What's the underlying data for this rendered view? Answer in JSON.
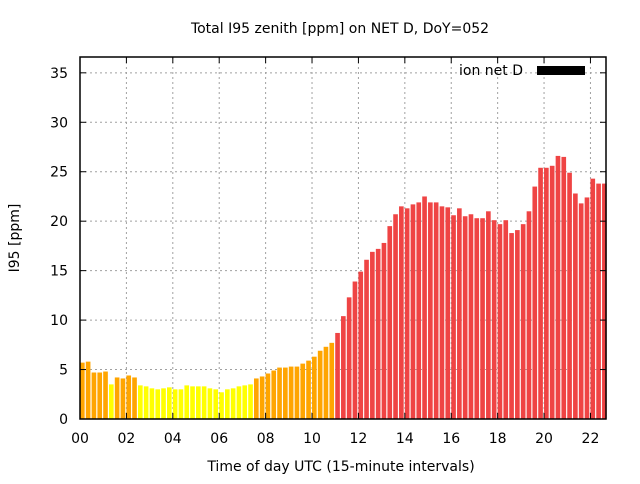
{
  "chart_data": {
    "type": "bar",
    "title": "Total I95 zenith [ppm] on NET D, DoY=052",
    "xlabel": "Time of day UTC (15-minute intervals)",
    "ylabel": "I95 [ppm]",
    "xlim": [
      0,
      22.67
    ],
    "ylim": [
      0,
      36.6
    ],
    "grid": true,
    "x_ticks": [
      0,
      2,
      4,
      6,
      8,
      10,
      12,
      14,
      16,
      18,
      20,
      22
    ],
    "x_tick_labels": [
      "00",
      "02",
      "04",
      "06",
      "08",
      "10",
      "12",
      "14",
      "16",
      "18",
      "20",
      "22"
    ],
    "y_ticks": [
      0,
      5,
      10,
      15,
      20,
      25,
      30,
      35
    ],
    "y_tick_labels": [
      "0",
      "5",
      "10",
      "15",
      "20",
      "25",
      "30",
      "35"
    ],
    "legend": {
      "label": "ion net D",
      "placement": "top-right",
      "color": "#000000"
    },
    "interval_hours": 0.25,
    "values": [
      5.7,
      5.8,
      4.7,
      4.7,
      4.8,
      3.5,
      4.2,
      4.1,
      4.4,
      4.2,
      3.4,
      3.3,
      3.1,
      3.0,
      3.1,
      3.2,
      3.0,
      3.0,
      3.4,
      3.3,
      3.3,
      3.3,
      3.1,
      3.0,
      2.7,
      3.0,
      3.1,
      3.3,
      3.4,
      3.5,
      4.1,
      4.3,
      4.6,
      4.9,
      5.2,
      5.2,
      5.3,
      5.3,
      5.6,
      5.9,
      6.3,
      6.9,
      7.3,
      7.7,
      8.7,
      10.4,
      12.3,
      13.9,
      14.9,
      16.1,
      16.9,
      17.2,
      17.8,
      19.5,
      20.7,
      21.5,
      21.3,
      21.7,
      21.9,
      22.5,
      21.9,
      21.9,
      21.5,
      21.4,
      20.6,
      21.3,
      20.5,
      20.7,
      20.3,
      20.3,
      21.0,
      20.1,
      19.7,
      20.1,
      18.8,
      19.1,
      19.7,
      21.0,
      23.5,
      25.4,
      25.4,
      25.6,
      26.6,
      26.5,
      24.9,
      22.8,
      21.8,
      22.4,
      24.3,
      23.8,
      23.8
    ],
    "color_scale": [
      {
        "below": 4,
        "color": "#ffff00"
      },
      {
        "below": 8,
        "color": "#ffa500"
      },
      {
        "below": 1000,
        "color": "#ef4444"
      }
    ]
  }
}
